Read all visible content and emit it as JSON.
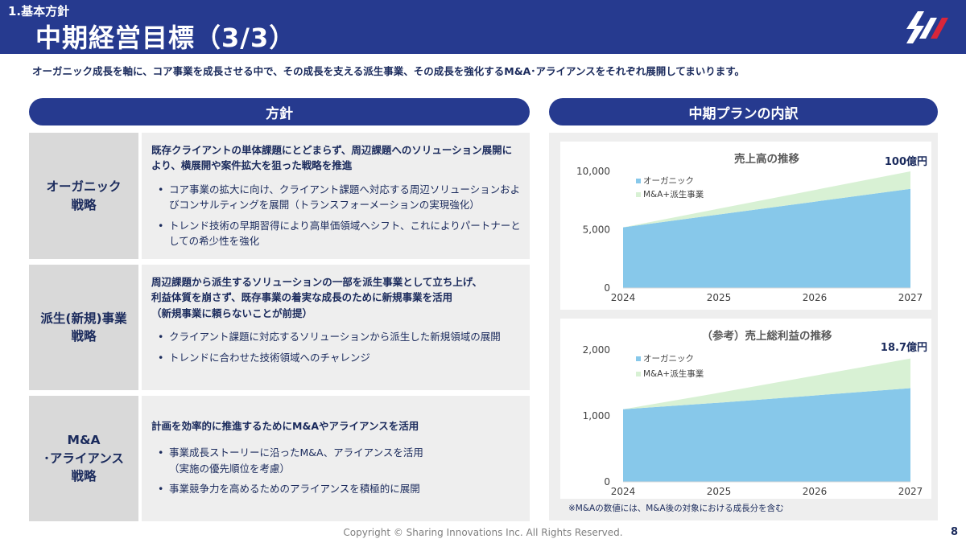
{
  "header": {
    "section": "1.基本方針",
    "title": "中期経営目標（3/3）"
  },
  "subtitle": "オーガニック成長を軸に、コア事業を成長させる中で、その成長を支える派生事業、その成長を強化するM&A･アライアンスをそれぞれ展開してまいります。",
  "left": {
    "heading": "方針",
    "rows": [
      {
        "label": [
          "オーガニック",
          "戦略"
        ],
        "lead": [
          "既存クライアントの単体課題にとどまらず、周辺課題へのソリューション展開に",
          "より、横展開や案件拡大を狙った戦略を推進"
        ],
        "bullets": [
          [
            "コア事業の拡大に向け、クライアント課題へ対応する周辺ソリューションおよ",
            "びコンサルティングを展開（トランスフォーメーションの実現強化）"
          ],
          [
            "トレンド技術の早期習得により高単価領域へシフト、これによりパートナーと",
            "しての希少性を強化"
          ]
        ]
      },
      {
        "label": [
          "派生(新規)事業",
          "戦略"
        ],
        "lead": [
          "周辺課題から派生するソリューションの一部を派生事業として立ち上げ、",
          "利益体質を崩さず、既存事業の着実な成長のために新規事業を活用",
          "（新規事業に頼らないことが前提）"
        ],
        "bullets": [
          [
            "クライアント課題に対応するソリューションから派生した新規領域の展開"
          ],
          [
            "トレンドに合わせた技術領域へのチャレンジ"
          ]
        ]
      },
      {
        "label": [
          "M&A",
          "･アライアンス",
          "戦略"
        ],
        "lead": [
          "計画を効率的に推進するためにM&Aやアライアンスを活用"
        ],
        "bullets": [
          [
            "事業成長ストーリーに沿ったM&A、アライアンスを活用",
            "（実施の優先順位を考慮）"
          ],
          [
            "事業競争力を高めるためのアライアンスを積極的に展開"
          ]
        ]
      }
    ]
  },
  "right": {
    "heading": "中期プランの内訳",
    "note": "※M&Aの数値には、M&A後の対象における成長分を含む"
  },
  "chart_data": [
    {
      "type": "area",
      "stacked": true,
      "title": "売上高の推移",
      "x": [
        "2024",
        "2025",
        "2026",
        "2027"
      ],
      "ylim": [
        0,
        10000
      ],
      "yticks": [
        "0",
        "5,000",
        "10,000"
      ],
      "series": [
        {
          "name": "オーガニック",
          "values": [
            5200,
            6300,
            7400,
            8500
          ],
          "color": "#87c8ea"
        },
        {
          "name": "M&A+派生事業",
          "values": [
            0,
            500,
            1000,
            1500
          ],
          "color": "#d8f1d4"
        }
      ],
      "legend_position": "top-left",
      "annotation": "100億円"
    },
    {
      "type": "area",
      "stacked": true,
      "title": "（参考）売上総利益の推移",
      "x": [
        "2024",
        "2025",
        "2026",
        "2027"
      ],
      "ylim": [
        0,
        2000
      ],
      "yticks": [
        "0",
        "1,000",
        "2,000"
      ],
      "series": [
        {
          "name": "オーガニック",
          "values": [
            1100,
            1200,
            1310,
            1420
          ],
          "color": "#87c8ea"
        },
        {
          "name": "M&A+派生事業",
          "values": [
            0,
            150,
            300,
            450
          ],
          "color": "#d8f1d4"
        }
      ],
      "legend_position": "top-left",
      "annotation": "18.7億円"
    }
  ],
  "footer": {
    "copyright": "Copyright © Sharing Innovations Inc. All Rights Reserved.",
    "page": "8"
  },
  "colors": {
    "navy": "#263a8f",
    "text": "#1a2a5c",
    "organic": "#87c8ea",
    "ma": "#d8f1d4",
    "logo_red": "#d9263a"
  }
}
